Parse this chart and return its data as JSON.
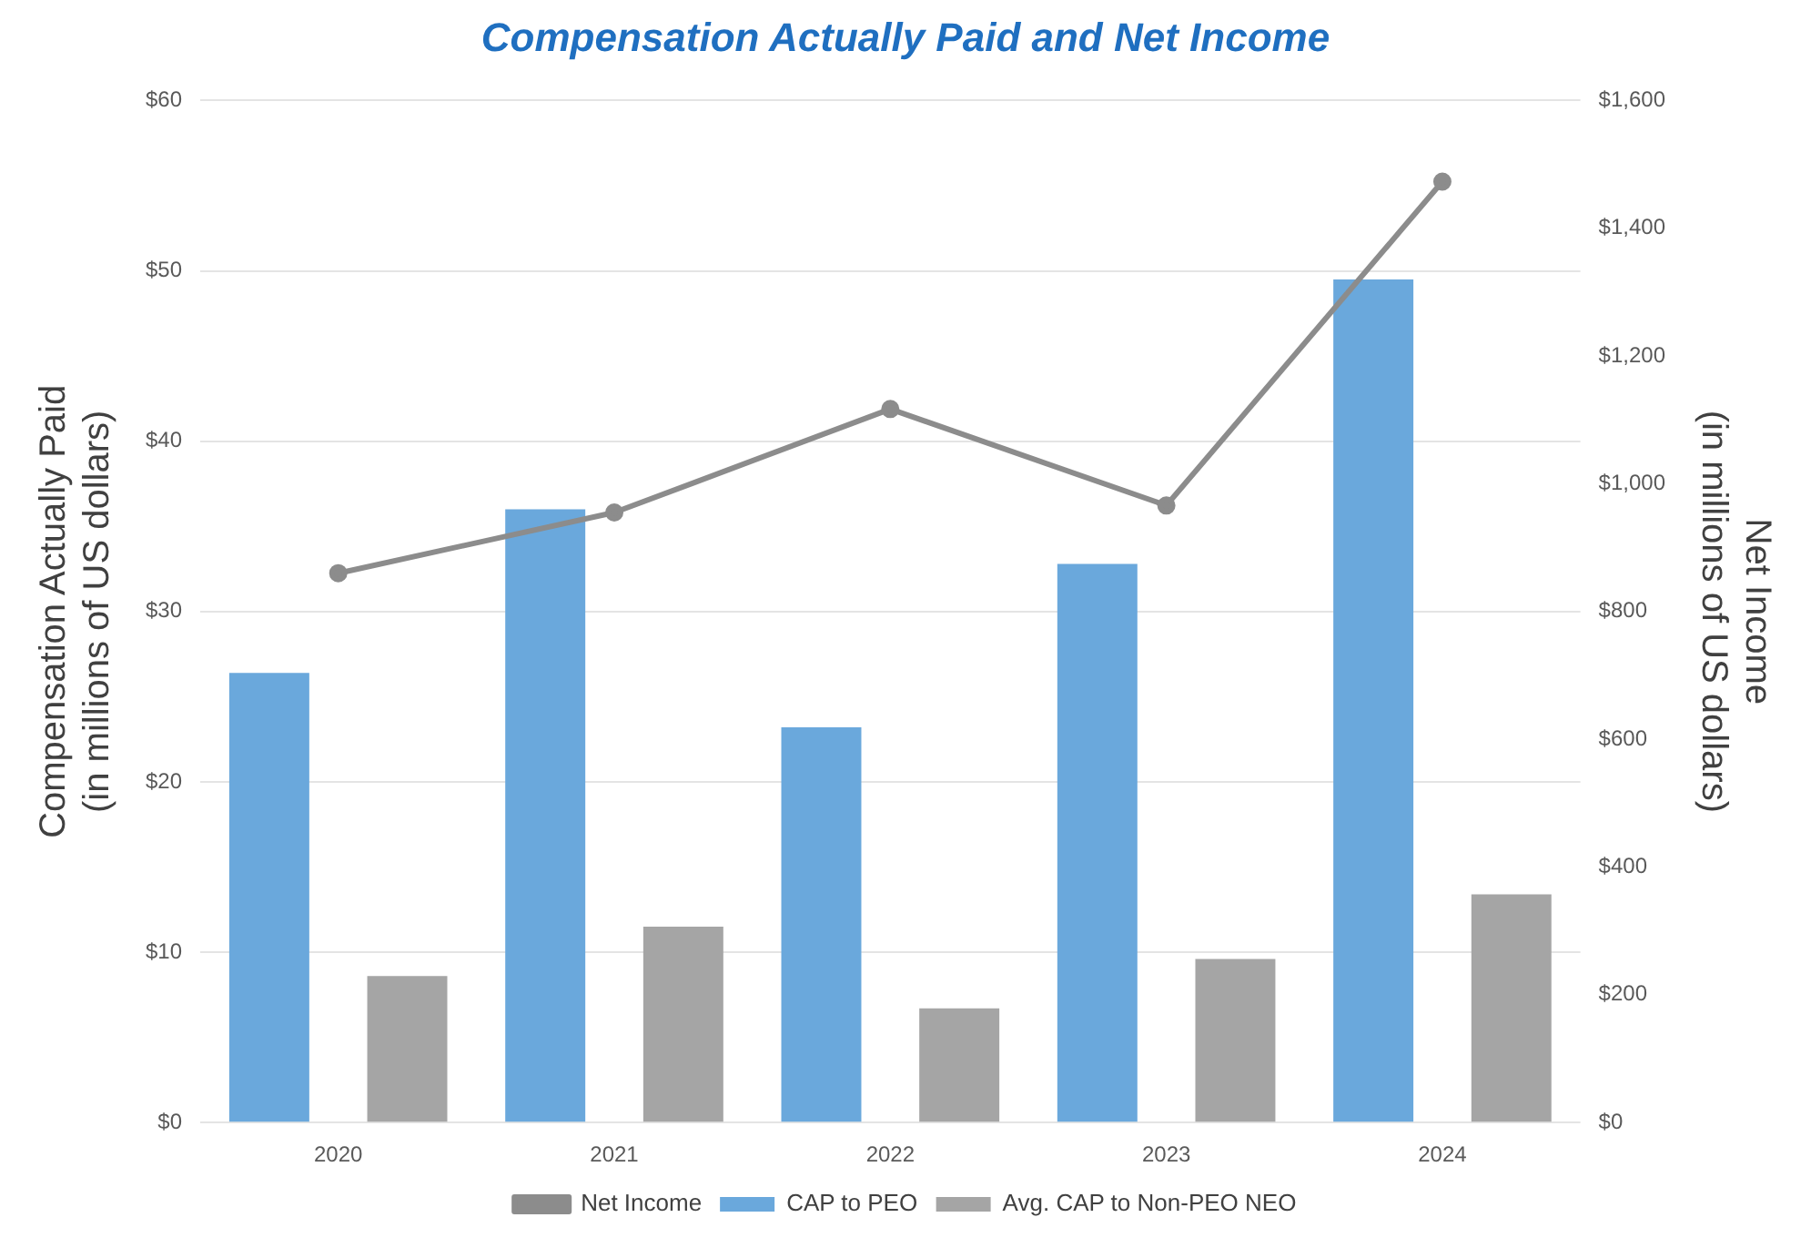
{
  "chart_data": {
    "type": "bar",
    "title": "Compensation Actually Paid and Net Income",
    "ylabel": "Compensation Actually Paid\n(in millions of US dollars)",
    "y2label": "Net Income\n(in millions of US dollars)",
    "categories": [
      "2020",
      "2021",
      "2022",
      "2023",
      "2024"
    ],
    "series": [
      {
        "name": "CAP to PEO",
        "color": "#6aa8dc",
        "values": [
          26.4,
          36.0,
          23.2,
          32.8,
          49.5
        ]
      },
      {
        "name": "Avg. CAP to Non-PEO NEO",
        "color": "#a5a5a5",
        "values": [
          8.6,
          11.5,
          6.7,
          9.6,
          13.4
        ]
      },
      {
        "name": "Net Income",
        "type": "line",
        "axis": "y2",
        "color": "#8c8c8c",
        "values": [
          860,
          955,
          1117,
          966,
          1473
        ]
      }
    ],
    "ylim": [
      0,
      60
    ],
    "yticks": [
      {
        "value": 0,
        "label": "$0"
      },
      {
        "value": 10,
        "label": "$10"
      },
      {
        "value": 20,
        "label": "$20"
      },
      {
        "value": 30,
        "label": "$30"
      },
      {
        "value": 40,
        "label": "$40"
      },
      {
        "value": 50,
        "label": "$50"
      },
      {
        "value": 60,
        "label": "$60"
      }
    ],
    "y2lim": [
      0,
      1600
    ],
    "y2ticks": [
      {
        "value": 0,
        "label": "$0"
      },
      {
        "value": 200,
        "label": "$200"
      },
      {
        "value": 400,
        "label": "$400"
      },
      {
        "value": 600,
        "label": "$600"
      },
      {
        "value": 800,
        "label": "$800"
      },
      {
        "value": 1000,
        "label": "$1,000"
      },
      {
        "value": 1200,
        "label": "$1,200"
      },
      {
        "value": 1400,
        "label": "$1,400"
      },
      {
        "value": 1600,
        "label": "$1,600"
      }
    ],
    "grid": "y",
    "legend": "bottom",
    "marker": "circle"
  }
}
